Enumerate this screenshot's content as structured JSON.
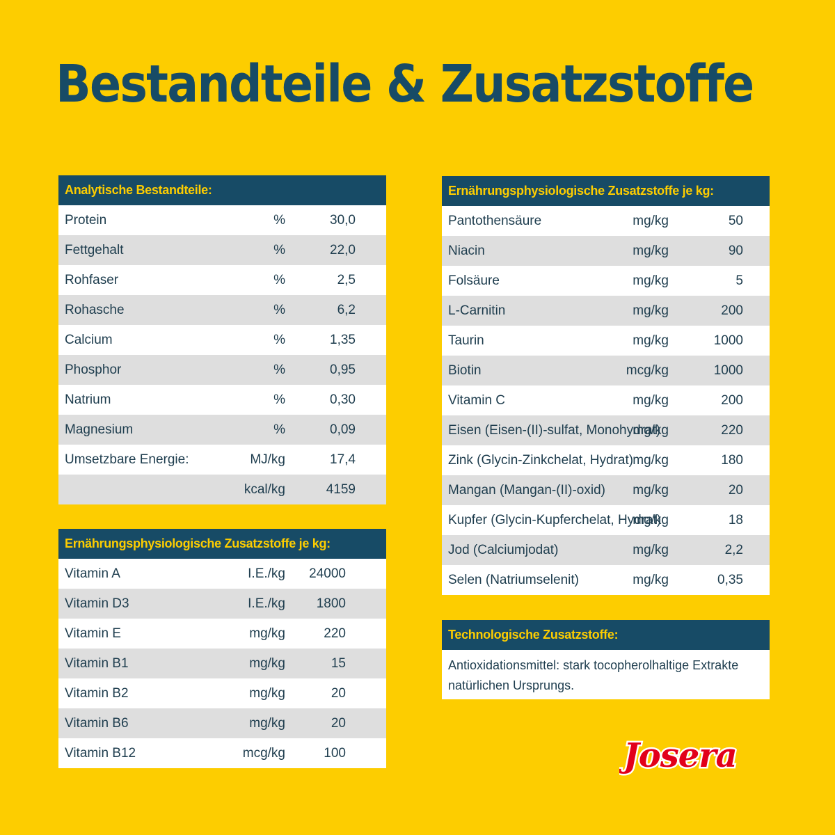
{
  "page": {
    "title": "Bestandteile & Zusatzstoffe",
    "brand": "Josera"
  },
  "colors": {
    "background": "#fdcd00",
    "header_bg": "#174b66",
    "header_text": "#fdcd00",
    "row_alt": "#dedede",
    "logo_red": "#e2001a"
  },
  "analytical": {
    "header": "Analytische Bestandteile:",
    "rows": [
      {
        "name": "Protein",
        "unit": "%",
        "value": "30,0"
      },
      {
        "name": "Fettgehalt",
        "unit": "%",
        "value": "22,0"
      },
      {
        "name": "Rohfaser",
        "unit": "%",
        "value": "2,5"
      },
      {
        "name": "Rohasche",
        "unit": "%",
        "value": "6,2"
      },
      {
        "name": "Calcium",
        "unit": "%",
        "value": "1,35"
      },
      {
        "name": "Phosphor",
        "unit": "%",
        "value": "0,95"
      },
      {
        "name": "Natrium",
        "unit": "%",
        "value": "0,30"
      },
      {
        "name": "Magnesium",
        "unit": "%",
        "value": "0,09"
      },
      {
        "name": "Umsetzbare Energie:",
        "unit": "MJ/kg",
        "value": "17,4"
      },
      {
        "name": "",
        "unit": "kcal/kg",
        "value": "4159"
      }
    ]
  },
  "vitamins": {
    "header": "Ernährungsphysiologische Zusatzstoffe je kg:",
    "rows": [
      {
        "name": "Vitamin A",
        "unit": "I.E./kg",
        "value": "24000"
      },
      {
        "name": "Vitamin D3",
        "unit": "I.E./kg",
        "value": "1800"
      },
      {
        "name": "Vitamin E",
        "unit": "mg/kg",
        "value": "220"
      },
      {
        "name": "Vitamin B1",
        "unit": "mg/kg",
        "value": "15"
      },
      {
        "name": "Vitamin B2",
        "unit": "mg/kg",
        "value": "20"
      },
      {
        "name": "Vitamin B6",
        "unit": "mg/kg",
        "value": "20"
      },
      {
        "name": "Vitamin B12",
        "unit": "mcg/kg",
        "value": "100"
      }
    ]
  },
  "nutritional": {
    "header": "Ernährungsphysiologische Zusatzstoffe je kg:",
    "rows": [
      {
        "name": "Pantothensäure",
        "unit": "mg/kg",
        "value": "50"
      },
      {
        "name": "Niacin",
        "unit": "mg/kg",
        "value": "90"
      },
      {
        "name": "Folsäure",
        "unit": "mg/kg",
        "value": "5"
      },
      {
        "name": "L-Carnitin",
        "unit": "mg/kg",
        "value": "200"
      },
      {
        "name": "Taurin",
        "unit": "mg/kg",
        "value": "1000"
      },
      {
        "name": "Biotin",
        "unit": "mcg/kg",
        "value": "1000"
      },
      {
        "name": "Vitamin C",
        "unit": "mg/kg",
        "value": "200"
      },
      {
        "name": "Eisen (Eisen-(II)-sulfat, Monohydrat)",
        "unit": "mg/kg",
        "value": "220"
      },
      {
        "name": "Zink (Glycin-Zinkchelat, Hydrat)",
        "unit": "mg/kg",
        "value": "180"
      },
      {
        "name": "Mangan (Mangan-(II)-oxid)",
        "unit": "mg/kg",
        "value": "20"
      },
      {
        "name": "Kupfer (Glycin-Kupferchelat, Hydrat)",
        "unit": "mg/kg",
        "value": "18"
      },
      {
        "name": "Jod (Calciumjodat)",
        "unit": "mg/kg",
        "value": "2,2"
      },
      {
        "name": "Selen (Natriumselenit)",
        "unit": "mg/kg",
        "value": "0,35"
      }
    ]
  },
  "technological": {
    "header": "Technologische Zusatzstoffe:",
    "lines": [
      "Antioxidationsmittel: stark tocopherolhaltige Extrakte",
      "natürlichen Ursprungs."
    ]
  }
}
